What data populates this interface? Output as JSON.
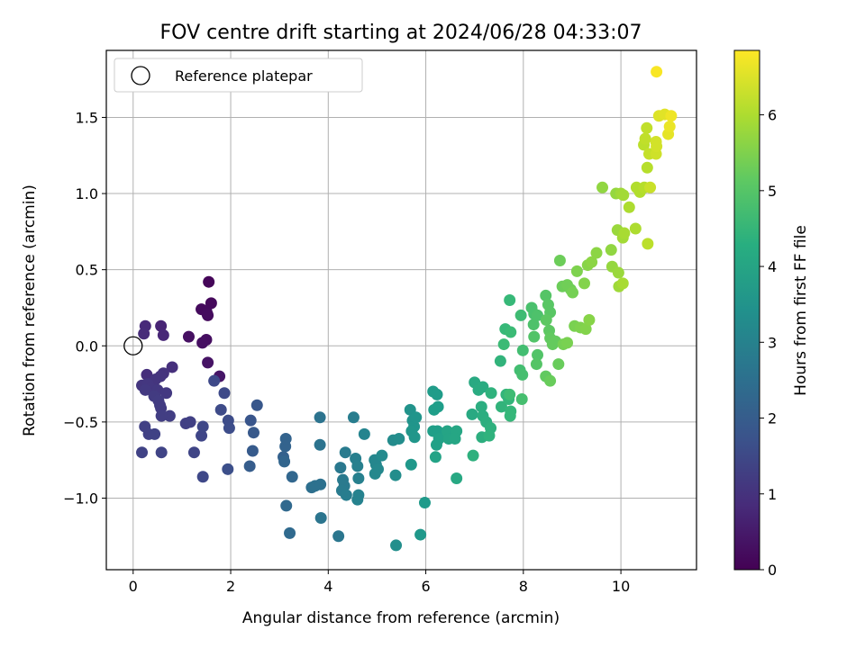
{
  "chart_data": {
    "type": "scatter",
    "title": "FOV centre drift starting at 2024/06/28 04:33:07",
    "xlabel": "Angular distance from reference (arcmin)",
    "ylabel": "Rotation from reference (arcmin)",
    "colorbar_label": "Hours from first FF file",
    "colormap": "viridis",
    "xlim": [
      -0.55,
      11.55
    ],
    "ylim": [
      -1.47,
      1.94
    ],
    "clim": [
      0,
      6.85
    ],
    "xticks": [
      0,
      2,
      4,
      6,
      8,
      10
    ],
    "yticks": [
      -1.0,
      -0.5,
      0.0,
      0.5,
      1.0,
      1.5
    ],
    "xtick_labels": [
      "0",
      "2",
      "4",
      "6",
      "8",
      "10"
    ],
    "ytick_labels": [
      "−1.0",
      "−0.5",
      "0.0",
      "0.5",
      "1.0",
      "1.5"
    ],
    "colorbar_ticks": [
      0,
      1,
      2,
      3,
      4,
      5,
      6
    ],
    "colorbar_tick_labels": [
      "0",
      "1",
      "2",
      "3",
      "4",
      "5",
      "6"
    ],
    "grid": true,
    "legend": {
      "placement": "upper-left",
      "entries": [
        "Reference platepar"
      ]
    },
    "reference_point": {
      "x": 0,
      "y": 0
    },
    "points": [
      {
        "x": 1.55,
        "y": 0.42,
        "c": 0.1
      },
      {
        "x": 1.6,
        "y": 0.28,
        "c": 0.15
      },
      {
        "x": 1.4,
        "y": 0.24,
        "c": 0.2
      },
      {
        "x": 1.53,
        "y": 0.2,
        "c": 0.2
      },
      {
        "x": 1.5,
        "y": 0.23,
        "c": 0.18
      },
      {
        "x": 1.52,
        "y": 0.21,
        "c": 0.22
      },
      {
        "x": 1.5,
        "y": 0.04,
        "c": 0.25
      },
      {
        "x": 1.42,
        "y": 0.02,
        "c": 0.28
      },
      {
        "x": 1.14,
        "y": 0.06,
        "c": 0.3
      },
      {
        "x": 1.53,
        "y": -0.11,
        "c": 0.35
      },
      {
        "x": 1.77,
        "y": -0.2,
        "c": 0.4
      },
      {
        "x": 0.57,
        "y": 0.13,
        "c": 0.7
      },
      {
        "x": 0.62,
        "y": 0.07,
        "c": 0.75
      },
      {
        "x": 0.25,
        "y": 0.13,
        "c": 0.8
      },
      {
        "x": 0.22,
        "y": 0.08,
        "c": 0.85
      },
      {
        "x": 0.28,
        "y": -0.19,
        "c": 0.9
      },
      {
        "x": 0.8,
        "y": -0.14,
        "c": 0.95
      },
      {
        "x": 0.62,
        "y": -0.18,
        "c": 1.0
      },
      {
        "x": 0.56,
        "y": -0.2,
        "c": 1.02
      },
      {
        "x": 0.46,
        "y": -0.22,
        "c": 1.05
      },
      {
        "x": 0.18,
        "y": -0.26,
        "c": 1.08
      },
      {
        "x": 0.3,
        "y": -0.25,
        "c": 1.1
      },
      {
        "x": 0.36,
        "y": -0.28,
        "c": 1.1
      },
      {
        "x": 0.5,
        "y": -0.29,
        "c": 1.12
      },
      {
        "x": 0.68,
        "y": -0.31,
        "c": 1.15
      },
      {
        "x": 0.25,
        "y": -0.29,
        "c": 1.15
      },
      {
        "x": 0.43,
        "y": -0.33,
        "c": 1.18
      },
      {
        "x": 0.52,
        "y": -0.36,
        "c": 1.2
      },
      {
        "x": 0.55,
        "y": -0.39,
        "c": 1.2
      },
      {
        "x": 0.57,
        "y": -0.41,
        "c": 1.22
      },
      {
        "x": 0.75,
        "y": -0.46,
        "c": 1.25
      },
      {
        "x": 0.58,
        "y": -0.46,
        "c": 1.25
      },
      {
        "x": 1.08,
        "y": -0.51,
        "c": 1.28
      },
      {
        "x": 1.17,
        "y": -0.5,
        "c": 1.3
      },
      {
        "x": 0.24,
        "y": -0.53,
        "c": 1.3
      },
      {
        "x": 0.32,
        "y": -0.58,
        "c": 1.32
      },
      {
        "x": 0.44,
        "y": -0.58,
        "c": 1.35
      },
      {
        "x": 0.18,
        "y": -0.7,
        "c": 1.35
      },
      {
        "x": 0.58,
        "y": -0.7,
        "c": 1.38
      },
      {
        "x": 1.25,
        "y": -0.7,
        "c": 1.4
      },
      {
        "x": 1.4,
        "y": -0.59,
        "c": 1.42
      },
      {
        "x": 1.43,
        "y": -0.53,
        "c": 1.45
      },
      {
        "x": 1.43,
        "y": -0.86,
        "c": 1.48
      },
      {
        "x": 1.66,
        "y": -0.23,
        "c": 1.5
      },
      {
        "x": 1.87,
        "y": -0.31,
        "c": 1.52
      },
      {
        "x": 1.8,
        "y": -0.42,
        "c": 1.55
      },
      {
        "x": 1.95,
        "y": -0.49,
        "c": 1.58
      },
      {
        "x": 1.97,
        "y": -0.54,
        "c": 1.6
      },
      {
        "x": 1.94,
        "y": -0.81,
        "c": 1.65
      },
      {
        "x": 2.41,
        "y": -0.49,
        "c": 1.8
      },
      {
        "x": 2.54,
        "y": -0.39,
        "c": 1.85
      },
      {
        "x": 2.47,
        "y": -0.57,
        "c": 1.9
      },
      {
        "x": 2.45,
        "y": -0.69,
        "c": 1.95
      },
      {
        "x": 2.39,
        "y": -0.79,
        "c": 2.0
      },
      {
        "x": 3.08,
        "y": -0.73,
        "c": 2.1
      },
      {
        "x": 3.12,
        "y": -0.66,
        "c": 2.15
      },
      {
        "x": 3.13,
        "y": -0.61,
        "c": 2.15
      },
      {
        "x": 3.1,
        "y": -0.76,
        "c": 2.2
      },
      {
        "x": 3.26,
        "y": -0.86,
        "c": 2.25
      },
      {
        "x": 3.14,
        "y": -1.05,
        "c": 2.3
      },
      {
        "x": 3.21,
        "y": -1.23,
        "c": 2.35
      },
      {
        "x": 3.66,
        "y": -0.93,
        "c": 2.5
      },
      {
        "x": 3.73,
        "y": -0.92,
        "c": 2.55
      },
      {
        "x": 3.84,
        "y": -0.91,
        "c": 2.55
      },
      {
        "x": 3.83,
        "y": -0.47,
        "c": 2.6
      },
      {
        "x": 3.83,
        "y": -0.65,
        "c": 2.6
      },
      {
        "x": 3.85,
        "y": -1.13,
        "c": 2.65
      },
      {
        "x": 4.21,
        "y": -1.25,
        "c": 2.7
      },
      {
        "x": 4.25,
        "y": -0.8,
        "c": 2.75
      },
      {
        "x": 4.3,
        "y": -0.88,
        "c": 2.8
      },
      {
        "x": 4.33,
        "y": -0.92,
        "c": 2.8
      },
      {
        "x": 4.28,
        "y": -0.95,
        "c": 2.85
      },
      {
        "x": 4.35,
        "y": -0.7,
        "c": 2.85
      },
      {
        "x": 4.37,
        "y": -0.98,
        "c": 2.9
      },
      {
        "x": 4.52,
        "y": -0.47,
        "c": 2.9
      },
      {
        "x": 4.56,
        "y": -0.74,
        "c": 2.95
      },
      {
        "x": 4.6,
        "y": -0.79,
        "c": 3.0
      },
      {
        "x": 4.62,
        "y": -0.87,
        "c": 3.0
      },
      {
        "x": 4.62,
        "y": -0.98,
        "c": 3.05
      },
      {
        "x": 4.6,
        "y": -1.01,
        "c": 3.05
      },
      {
        "x": 4.74,
        "y": -0.58,
        "c": 3.1
      },
      {
        "x": 4.95,
        "y": -0.75,
        "c": 3.15
      },
      {
        "x": 4.98,
        "y": -0.78,
        "c": 3.15
      },
      {
        "x": 5.02,
        "y": -0.81,
        "c": 3.2
      },
      {
        "x": 4.96,
        "y": -0.84,
        "c": 3.2
      },
      {
        "x": 5.1,
        "y": -0.72,
        "c": 3.25
      },
      {
        "x": 5.33,
        "y": -0.62,
        "c": 3.3
      },
      {
        "x": 5.45,
        "y": -0.61,
        "c": 3.35
      },
      {
        "x": 5.38,
        "y": -0.85,
        "c": 3.35
      },
      {
        "x": 5.39,
        "y": -1.31,
        "c": 3.4
      },
      {
        "x": 5.68,
        "y": -0.42,
        "c": 3.5
      },
      {
        "x": 5.73,
        "y": -0.49,
        "c": 3.5
      },
      {
        "x": 5.76,
        "y": -0.53,
        "c": 3.55
      },
      {
        "x": 5.8,
        "y": -0.47,
        "c": 3.55
      },
      {
        "x": 5.71,
        "y": -0.56,
        "c": 3.6
      },
      {
        "x": 5.77,
        "y": -0.6,
        "c": 3.6
      },
      {
        "x": 5.7,
        "y": -0.78,
        "c": 3.65
      },
      {
        "x": 5.89,
        "y": -1.24,
        "c": 3.65
      },
      {
        "x": 5.98,
        "y": -1.03,
        "c": 3.7
      },
      {
        "x": 6.15,
        "y": -0.3,
        "c": 3.75
      },
      {
        "x": 6.23,
        "y": -0.32,
        "c": 3.75
      },
      {
        "x": 6.25,
        "y": -0.4,
        "c": 3.8
      },
      {
        "x": 6.17,
        "y": -0.42,
        "c": 3.8
      },
      {
        "x": 6.15,
        "y": -0.56,
        "c": 3.85
      },
      {
        "x": 6.24,
        "y": -0.56,
        "c": 3.85
      },
      {
        "x": 6.27,
        "y": -0.61,
        "c": 3.9
      },
      {
        "x": 6.22,
        "y": -0.65,
        "c": 3.9
      },
      {
        "x": 6.2,
        "y": -0.73,
        "c": 3.95
      },
      {
        "x": 6.44,
        "y": -0.56,
        "c": 4.0
      },
      {
        "x": 6.47,
        "y": -0.61,
        "c": 4.0
      },
      {
        "x": 6.63,
        "y": -0.56,
        "c": 4.05
      },
      {
        "x": 6.6,
        "y": -0.61,
        "c": 4.05
      },
      {
        "x": 6.63,
        "y": -0.87,
        "c": 4.1
      },
      {
        "x": 6.95,
        "y": -0.45,
        "c": 4.15
      },
      {
        "x": 7.0,
        "y": -0.24,
        "c": 4.15
      },
      {
        "x": 7.08,
        "y": -0.29,
        "c": 4.2
      },
      {
        "x": 7.17,
        "y": -0.27,
        "c": 4.2
      },
      {
        "x": 7.14,
        "y": -0.4,
        "c": 4.25
      },
      {
        "x": 7.17,
        "y": -0.46,
        "c": 4.25
      },
      {
        "x": 7.24,
        "y": -0.5,
        "c": 4.3
      },
      {
        "x": 7.15,
        "y": -0.6,
        "c": 4.3
      },
      {
        "x": 6.97,
        "y": -0.72,
        "c": 4.35
      },
      {
        "x": 7.33,
        "y": -0.54,
        "c": 4.35
      },
      {
        "x": 7.3,
        "y": -0.59,
        "c": 4.4
      },
      {
        "x": 7.34,
        "y": -0.31,
        "c": 4.4
      },
      {
        "x": 7.53,
        "y": -0.1,
        "c": 4.45
      },
      {
        "x": 7.55,
        "y": -0.4,
        "c": 4.45
      },
      {
        "x": 7.65,
        "y": -0.32,
        "c": 4.5
      },
      {
        "x": 7.7,
        "y": -0.35,
        "c": 4.5
      },
      {
        "x": 7.74,
        "y": -0.43,
        "c": 4.55
      },
      {
        "x": 7.73,
        "y": -0.46,
        "c": 4.55
      },
      {
        "x": 7.72,
        "y": 0.3,
        "c": 4.6
      },
      {
        "x": 7.63,
        "y": 0.11,
        "c": 4.6
      },
      {
        "x": 7.74,
        "y": 0.09,
        "c": 4.65
      },
      {
        "x": 7.6,
        "y": 0.01,
        "c": 4.65
      },
      {
        "x": 7.72,
        "y": -0.32,
        "c": 4.7
      },
      {
        "x": 7.95,
        "y": 0.2,
        "c": 4.7
      },
      {
        "x": 7.99,
        "y": -0.03,
        "c": 4.75
      },
      {
        "x": 7.93,
        "y": -0.16,
        "c": 4.75
      },
      {
        "x": 7.98,
        "y": -0.19,
        "c": 4.8
      },
      {
        "x": 7.97,
        "y": -0.35,
        "c": 4.8
      },
      {
        "x": 8.17,
        "y": 0.25,
        "c": 4.85
      },
      {
        "x": 8.22,
        "y": 0.21,
        "c": 4.85
      },
      {
        "x": 8.29,
        "y": 0.2,
        "c": 4.9
      },
      {
        "x": 8.21,
        "y": 0.14,
        "c": 4.9
      },
      {
        "x": 8.22,
        "y": 0.06,
        "c": 4.95
      },
      {
        "x": 8.29,
        "y": -0.06,
        "c": 4.95
      },
      {
        "x": 8.27,
        "y": -0.12,
        "c": 5.0
      },
      {
        "x": 8.46,
        "y": 0.33,
        "c": 5.0
      },
      {
        "x": 8.51,
        "y": 0.27,
        "c": 5.05
      },
      {
        "x": 8.55,
        "y": 0.22,
        "c": 5.05
      },
      {
        "x": 8.47,
        "y": 0.17,
        "c": 5.1
      },
      {
        "x": 8.53,
        "y": 0.1,
        "c": 5.1
      },
      {
        "x": 8.55,
        "y": 0.05,
        "c": 5.15
      },
      {
        "x": 8.46,
        "y": -0.2,
        "c": 5.15
      },
      {
        "x": 8.6,
        "y": 0.01,
        "c": 5.2
      },
      {
        "x": 8.66,
        "y": 0.03,
        "c": 5.2
      },
      {
        "x": 8.55,
        "y": -0.23,
        "c": 5.25
      },
      {
        "x": 8.72,
        "y": -0.12,
        "c": 5.25
      },
      {
        "x": 8.75,
        "y": 0.56,
        "c": 5.3
      },
      {
        "x": 8.8,
        "y": 0.39,
        "c": 5.3
      },
      {
        "x": 8.9,
        "y": 0.4,
        "c": 5.35
      },
      {
        "x": 8.97,
        "y": 0.37,
        "c": 5.35
      },
      {
        "x": 9.01,
        "y": 0.35,
        "c": 5.4
      },
      {
        "x": 8.82,
        "y": 0.01,
        "c": 5.4
      },
      {
        "x": 8.9,
        "y": 0.02,
        "c": 5.45
      },
      {
        "x": 9.05,
        "y": 0.13,
        "c": 5.45
      },
      {
        "x": 9.1,
        "y": 0.49,
        "c": 5.5
      },
      {
        "x": 9.17,
        "y": 0.12,
        "c": 5.5
      },
      {
        "x": 9.25,
        "y": 0.41,
        "c": 5.55
      },
      {
        "x": 9.28,
        "y": 0.11,
        "c": 5.55
      },
      {
        "x": 9.32,
        "y": 0.53,
        "c": 5.6
      },
      {
        "x": 9.35,
        "y": 0.17,
        "c": 5.6
      },
      {
        "x": 9.4,
        "y": 0.55,
        "c": 5.65
      },
      {
        "x": 9.5,
        "y": 0.61,
        "c": 5.65
      },
      {
        "x": 9.62,
        "y": 1.04,
        "c": 5.7
      },
      {
        "x": 9.8,
        "y": 0.63,
        "c": 5.7
      },
      {
        "x": 9.82,
        "y": 0.52,
        "c": 5.75
      },
      {
        "x": 9.9,
        "y": 1.0,
        "c": 5.75
      },
      {
        "x": 9.95,
        "y": 0.48,
        "c": 5.8
      },
      {
        "x": 9.93,
        "y": 0.76,
        "c": 5.8
      },
      {
        "x": 9.96,
        "y": 0.39,
        "c": 5.85
      },
      {
        "x": 10.0,
        "y": 1.0,
        "c": 5.85
      },
      {
        "x": 10.05,
        "y": 0.99,
        "c": 5.9
      },
      {
        "x": 10.04,
        "y": 0.71,
        "c": 5.9
      },
      {
        "x": 10.07,
        "y": 0.74,
        "c": 5.95
      },
      {
        "x": 10.04,
        "y": 0.41,
        "c": 5.95
      },
      {
        "x": 10.17,
        "y": 0.91,
        "c": 6.0
      },
      {
        "x": 10.3,
        "y": 0.77,
        "c": 6.0
      },
      {
        "x": 10.32,
        "y": 1.04,
        "c": 6.05
      },
      {
        "x": 10.39,
        "y": 1.01,
        "c": 6.05
      },
      {
        "x": 10.48,
        "y": 1.04,
        "c": 6.1
      },
      {
        "x": 10.54,
        "y": 1.17,
        "c": 6.1
      },
      {
        "x": 10.55,
        "y": 0.67,
        "c": 6.15
      },
      {
        "x": 10.47,
        "y": 1.32,
        "c": 6.15
      },
      {
        "x": 10.5,
        "y": 1.36,
        "c": 6.2
      },
      {
        "x": 10.53,
        "y": 1.43,
        "c": 6.2
      },
      {
        "x": 10.58,
        "y": 1.26,
        "c": 6.25
      },
      {
        "x": 10.6,
        "y": 1.04,
        "c": 6.3
      },
      {
        "x": 10.72,
        "y": 1.26,
        "c": 6.35
      },
      {
        "x": 10.72,
        "y": 1.34,
        "c": 6.4
      },
      {
        "x": 10.73,
        "y": 1.31,
        "c": 6.4
      },
      {
        "x": 10.78,
        "y": 1.51,
        "c": 6.5
      },
      {
        "x": 10.9,
        "y": 1.52,
        "c": 6.55
      },
      {
        "x": 10.97,
        "y": 1.39,
        "c": 6.6
      },
      {
        "x": 11.0,
        "y": 1.44,
        "c": 6.65
      },
      {
        "x": 11.03,
        "y": 1.51,
        "c": 6.7
      },
      {
        "x": 10.73,
        "y": 1.8,
        "c": 6.8
      }
    ]
  }
}
